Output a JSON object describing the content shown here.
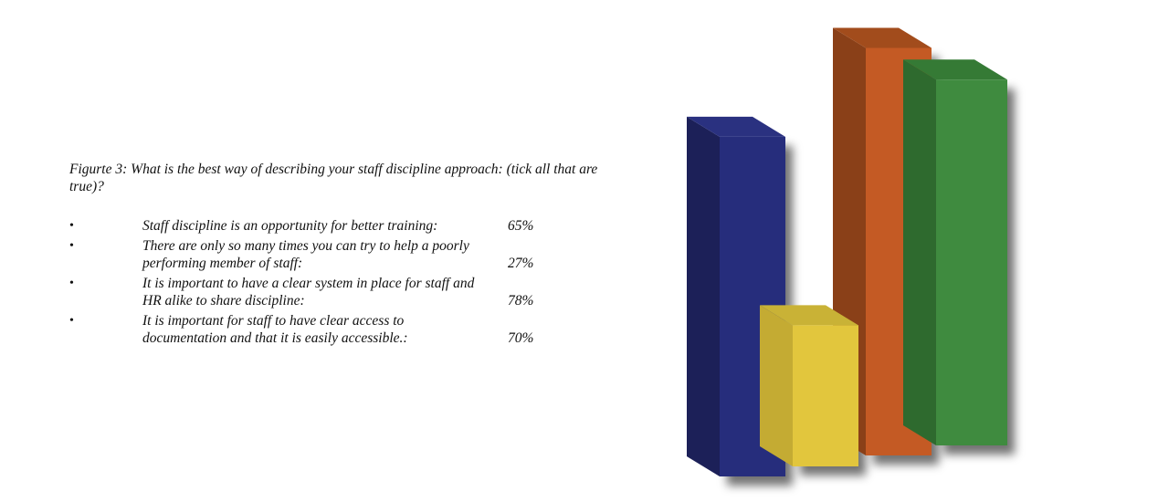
{
  "figure": {
    "caption": "Figurte 3: What is the best way of describing your staff discipline approach: (tick all that are true)?"
  },
  "items": [
    {
      "bullet": "•",
      "text": "Staff discipline is an opportunity for better training:",
      "value": "65%"
    },
    {
      "bullet": "•",
      "text": "There are only so many times you can try to help a poorly performing member of staff:",
      "value": "27%"
    },
    {
      "bullet": "•",
      "text": "It is important to have a clear system in place for staff and HR alike to share discipline:",
      "value": "78%"
    },
    {
      "bullet": "•",
      "text": "It is important for staff to have clear access to documentation and that it is easily accessible.:",
      "value": "70%"
    }
  ],
  "chart_data": {
    "type": "bar",
    "style": "3d",
    "categories": [
      "",
      "",
      "",
      ""
    ],
    "values": [
      65,
      27,
      78,
      70
    ],
    "colors": [
      "#262d7c",
      "#e2c63d",
      "#c45a24",
      "#3f8b3f"
    ],
    "side_colors": [
      "#1c2058",
      "#c4ab33",
      "#8a4018",
      "#2e6a2e"
    ],
    "top_colors": [
      "#2a3180",
      "#c9b236",
      "#a24c1c",
      "#357a35"
    ],
    "ylim": [
      0,
      100
    ],
    "grid": false,
    "legend": "none"
  }
}
